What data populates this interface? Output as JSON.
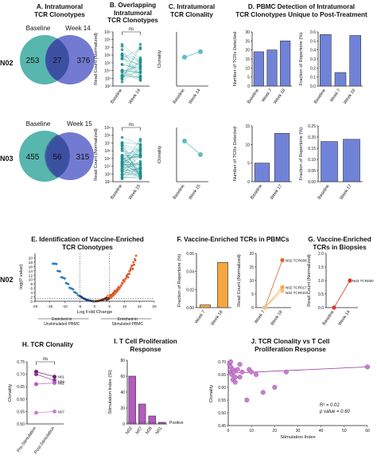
{
  "panels": {
    "A": "A. Intratumoral\nTCR Clonotypes",
    "B": "B. Overlapping\nIntratumoral\nTCR Clonotypes",
    "C": "C. Intratumoral\nTCR Clonality",
    "D": "D. PBMC Detection of Intratumoral\nTCR Clonotypes Unique to Post-Treatment",
    "E": "E. Identification of Vaccine-Enriched\nTCR Clonotypes",
    "F": "F. Vaccine-Enriched TCRs in PBMCs",
    "G": "G. Vaccine-Enriched\nTCRs in Biopsies",
    "H": "H. TCR Clonality",
    "I": "I. T Cell Proliferation\nResponse",
    "J": "J. TCR Clonality vs T Cell\nProliferation Response"
  },
  "row_labels": {
    "n02_top": "N02",
    "n03": "N03",
    "n02_e": "N02"
  },
  "colors": {
    "baseline": "#3aa9a0",
    "week": "#5b63c9",
    "overlap": "#283c8a",
    "bar_blue": "#7083d8",
    "orange": "#f4a742",
    "dark_orange": "#e0642a",
    "purple": "#b45bc0",
    "teal_points": "#1f8f8f",
    "red": "#d63a2a"
  },
  "chart_data": [
    {
      "id": "A-N02",
      "type": "venn",
      "sets": [
        "Baseline",
        "Week 14"
      ],
      "values": {
        "left_only": 253,
        "overlap": 27,
        "right_only": 376
      }
    },
    {
      "id": "A-N03",
      "type": "venn",
      "sets": [
        "Baseline",
        "Week 15"
      ],
      "values": {
        "left_only": 455,
        "overlap": 56,
        "right_only": 315
      }
    },
    {
      "id": "B-N02",
      "type": "scatter",
      "ylabel": "Read Count (Normalized)",
      "categories": [
        "Baseline",
        "Week 14"
      ],
      "annotation": "ns",
      "yticks": [
        "10⁹",
        "10⁸",
        "10⁷",
        "10⁶",
        "10⁵",
        "10⁴",
        "10³",
        "10²"
      ]
    },
    {
      "id": "B-N03",
      "type": "scatter",
      "ylabel": "Read Count (Normalized)",
      "categories": [
        "Baseline",
        "Week 15"
      ],
      "annotation": "ns",
      "yticks": [
        "10⁹",
        "10⁸",
        "10⁷",
        "10⁶",
        "10⁵",
        "10⁴",
        "10³",
        "10²"
      ]
    },
    {
      "id": "C-N02",
      "type": "line",
      "ylabel": "Clonality",
      "categories": [
        "Baseline",
        "Week 14"
      ],
      "values": [
        0.52,
        0.58
      ]
    },
    {
      "id": "C-N03",
      "type": "line",
      "ylabel": "Clonality",
      "categories": [
        "Baseline",
        "Week 15"
      ],
      "values": [
        0.65,
        0.5
      ]
    },
    {
      "id": "D-N02-count",
      "type": "bar",
      "ylabel": "Number of TCRs Detected",
      "categories": [
        "Baseline",
        "Week 7",
        "Week 18"
      ],
      "values": [
        19,
        20,
        25
      ],
      "ylim": [
        0,
        30
      ],
      "yticks": [
        0,
        5,
        10,
        15,
        20,
        25,
        30
      ]
    },
    {
      "id": "D-N02-frac",
      "type": "bar",
      "ylabel": "Fraction of Repertoire (%)",
      "categories": [
        "Baseline",
        "Week 7",
        "Week 18"
      ],
      "values": [
        0.57,
        0.15,
        0.56
      ],
      "ylim": [
        0,
        0.6
      ],
      "yticks": [
        0.0,
        0.1,
        0.2,
        0.3,
        0.4,
        0.5,
        0.6
      ]
    },
    {
      "id": "D-N03-count",
      "type": "bar",
      "ylabel": "Number of TCRs Detected",
      "categories": [
        "Baseline",
        "Week 17"
      ],
      "values": [
        5,
        13
      ],
      "ylim": [
        0,
        15
      ],
      "yticks": [
        0,
        5,
        10,
        15
      ]
    },
    {
      "id": "D-N03-frac",
      "type": "bar",
      "ylabel": "Fraction of Repertoire (%)",
      "categories": [
        "Baseline",
        "Week 17"
      ],
      "values": [
        0.18,
        0.19
      ],
      "ylim": [
        0,
        0.25
      ],
      "yticks": [
        0.0,
        0.05,
        0.1,
        0.15,
        0.2,
        0.25
      ]
    },
    {
      "id": "E",
      "type": "scatter",
      "xlabel": "Log Fold Change",
      "ylabel": "-log(P value)",
      "xlim": [
        -20,
        20
      ],
      "ylim": [
        0,
        22
      ],
      "xticks": [
        -20,
        -15,
        -10,
        -5,
        0,
        5,
        10,
        15,
        20
      ],
      "yticks": [
        0,
        2,
        4,
        6,
        8,
        10,
        12,
        14,
        16,
        18,
        20
      ],
      "annotations": [
        "Enriched in\nUnstimulated PBMC",
        "Enriched in\nStimulated PBMC"
      ]
    },
    {
      "id": "F-frac",
      "type": "bar",
      "ylabel": "Fraction of Repertoire (%)",
      "categories": [
        "Week 7",
        "Week 18"
      ],
      "values": [
        0.003,
        0.05
      ],
      "ylim": [
        0,
        0.06
      ],
      "yticks": [
        0.0,
        0.02,
        0.04,
        0.06
      ]
    },
    {
      "id": "F-reads",
      "type": "line",
      "ylabel": "Read Count (Normalized)",
      "categories": [
        "Week 7",
        "Week 18"
      ],
      "ylim": [
        0,
        20
      ],
      "yticks": [
        0,
        5,
        10,
        15,
        20
      ],
      "series": [
        {
          "name": "N02 TCR008",
          "values": [
            0,
            17.5
          ]
        },
        {
          "name": "N02 TCR017",
          "values": [
            0,
            7.5
          ]
        },
        {
          "name": "N02 TCR023",
          "values": [
            0,
            6.2
          ]
        }
      ]
    },
    {
      "id": "G",
      "type": "line",
      "ylabel": "Read Count (Normalized)",
      "categories": [
        "Baseline",
        "Week 14"
      ],
      "ylim": [
        0,
        2.0
      ],
      "yticks": [
        0.0,
        0.5,
        1.0,
        1.5,
        2.0
      ],
      "series": [
        {
          "name": "N02 TCR000",
          "values": [
            0,
            1.0
          ]
        }
      ]
    },
    {
      "id": "H",
      "type": "line",
      "ylabel": "Clonality",
      "categories": [
        "Pre-Stimulation",
        "Post-Stimulation"
      ],
      "ylim": [
        0.5,
        0.75
      ],
      "yticks": [
        0.5,
        0.55,
        0.6,
        0.65,
        0.7,
        0.75
      ],
      "annotation": "ns",
      "series": [
        {
          "name": "N01",
          "values": [
            0.71,
            0.69
          ]
        },
        {
          "name": "N09",
          "values": [
            0.7,
            0.675
          ]
        },
        {
          "name": "N02",
          "values": [
            0.66,
            0.665
          ]
        },
        {
          "name": "N07",
          "values": [
            0.545,
            0.55
          ]
        }
      ]
    },
    {
      "id": "I",
      "type": "bar",
      "ylabel": "Stimulation Index (SI)",
      "categories": [
        "N02",
        "N07",
        "N09",
        "N01"
      ],
      "values": [
        60,
        25,
        10,
        2
      ],
      "ylim": [
        0,
        80
      ],
      "yticks": [
        0,
        20,
        40,
        60,
        80
      ],
      "annotation": "Positive"
    },
    {
      "id": "J",
      "type": "scatter",
      "xlabel": "Stimulation Index",
      "ylabel": "Clonality",
      "xlim": [
        0,
        60
      ],
      "ylim": [
        0.45,
        0.7
      ],
      "xticks": [
        0,
        10,
        20,
        30,
        40,
        50,
        60
      ],
      "yticks": [
        0.45,
        0.5,
        0.55,
        0.6,
        0.65,
        0.7
      ],
      "annotations": [
        "R² = 0.02",
        "p value = 0.60"
      ],
      "x": [
        0.5,
        1,
        1,
        1.5,
        2,
        2,
        2.5,
        3,
        4,
        5,
        5,
        6,
        9,
        10,
        12,
        20,
        25,
        60,
        1,
        3,
        8,
        15
      ],
      "y": [
        0.69,
        0.68,
        0.66,
        0.65,
        0.67,
        0.63,
        0.66,
        0.62,
        0.67,
        0.69,
        0.64,
        0.66,
        0.67,
        0.66,
        0.65,
        0.6,
        0.66,
        0.68,
        0.7,
        0.64,
        0.55,
        0.58
      ]
    }
  ]
}
